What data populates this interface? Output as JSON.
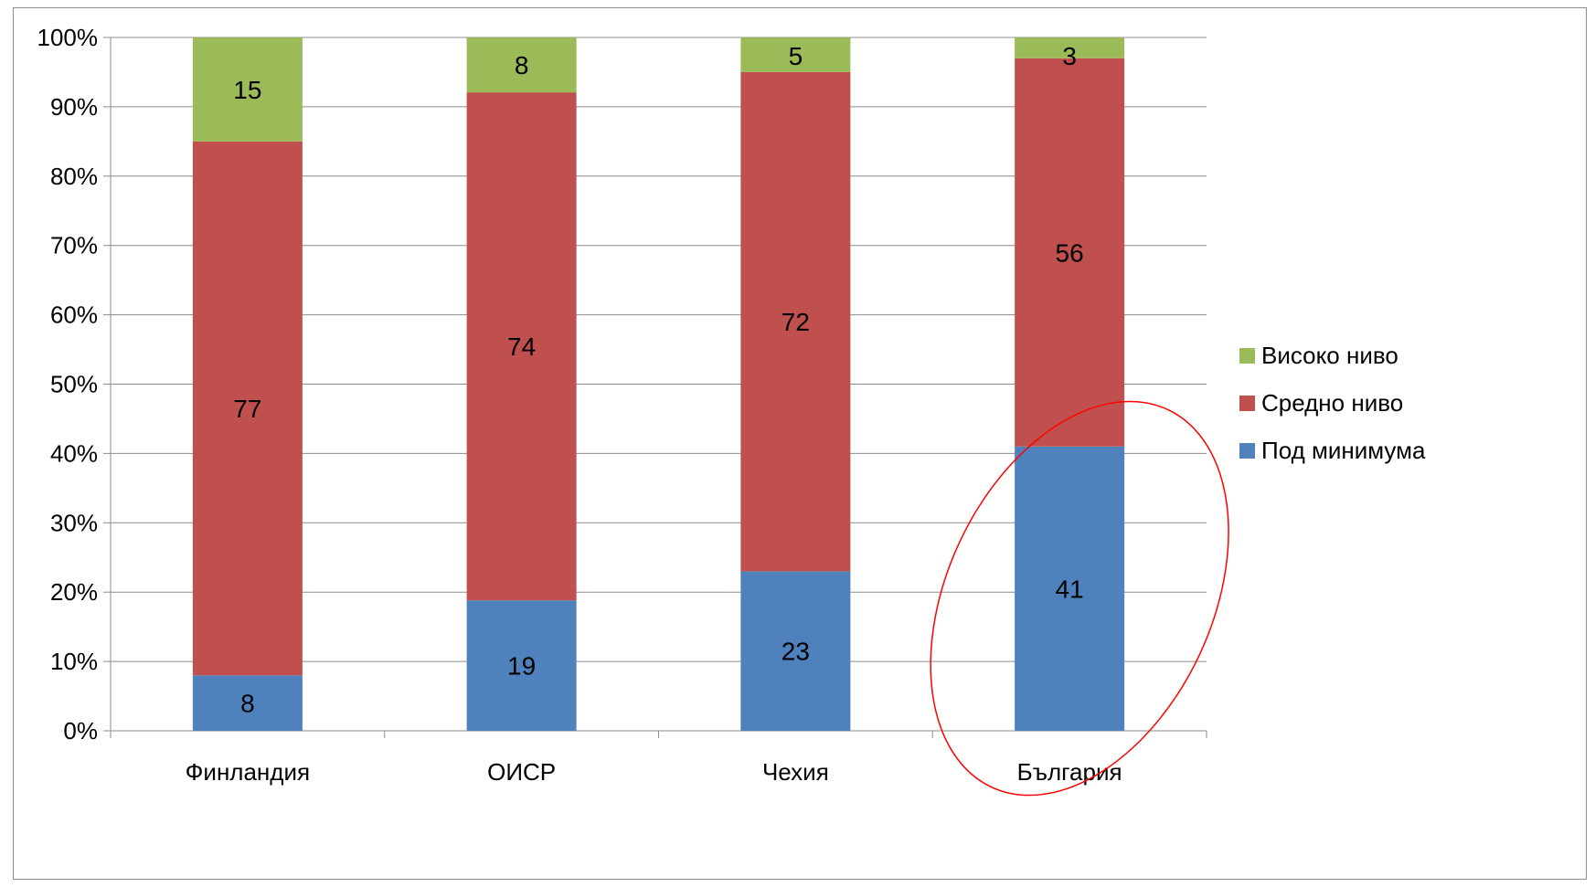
{
  "chart_data": {
    "type": "bar",
    "stacked": true,
    "percent_stacked": true,
    "categories": [
      "Финландия",
      "ОИСР",
      "Чехия",
      "България"
    ],
    "series": [
      {
        "name": "Под минимума",
        "values": [
          8,
          19,
          23,
          41
        ],
        "color": "#4f81bd"
      },
      {
        "name": "Средно ниво",
        "values": [
          77,
          74,
          72,
          56
        ],
        "color": "#c0504d"
      },
      {
        "name": "Високо ниво",
        "values": [
          15,
          8,
          5,
          3
        ],
        "color": "#9bbb59"
      }
    ],
    "yticks": [
      "0%",
      "10%",
      "20%",
      "30%",
      "40%",
      "50%",
      "60%",
      "70%",
      "80%",
      "90%",
      "100%"
    ],
    "ylim": [
      0,
      100
    ],
    "grid": true,
    "legend_position": "right",
    "annotation": {
      "shape": "ellipse",
      "color": "#ff0000",
      "target_category": "България"
    }
  }
}
